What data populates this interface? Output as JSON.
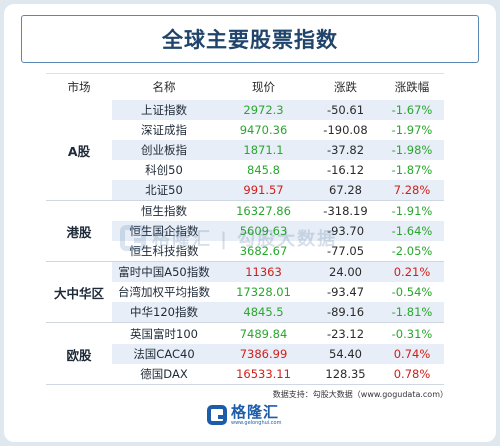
{
  "title": "全球主要股票指数",
  "headers": {
    "market": "市场",
    "name": "名称",
    "price": "现价",
    "change": "涨跌",
    "pct": "涨跌幅"
  },
  "groups": [
    {
      "label": "A股",
      "rows": [
        {
          "name": "上证指数",
          "price": "2972.3",
          "change": "-50.61",
          "pct": "-1.67%",
          "dir": "down"
        },
        {
          "name": "深证成指",
          "price": "9470.36",
          "change": "-190.08",
          "pct": "-1.97%",
          "dir": "down"
        },
        {
          "name": "创业板指",
          "price": "1871.1",
          "change": "-37.82",
          "pct": "-1.98%",
          "dir": "down"
        },
        {
          "name": "科创50",
          "price": "845.8",
          "change": "-16.12",
          "pct": "-1.87%",
          "dir": "down"
        },
        {
          "name": "北证50",
          "price": "991.57",
          "change": "67.28",
          "pct": "7.28%",
          "dir": "up"
        }
      ]
    },
    {
      "label": "港股",
      "rows": [
        {
          "name": "恒生指数",
          "price": "16327.86",
          "change": "-318.19",
          "pct": "-1.91%",
          "dir": "down"
        },
        {
          "name": "恒生国企指数",
          "price": "5609.63",
          "change": "-93.70",
          "pct": "-1.64%",
          "dir": "down"
        },
        {
          "name": "恒生科技指数",
          "price": "3682.67",
          "change": "-77.05",
          "pct": "-2.05%",
          "dir": "down"
        }
      ]
    },
    {
      "label": "大中华区",
      "rows": [
        {
          "name": "富时中国A50指数",
          "price": "11363",
          "change": "24.00",
          "pct": "0.21%",
          "dir": "up"
        },
        {
          "name": "台湾加权平均指数",
          "price": "17328.01",
          "change": "-93.47",
          "pct": "-0.54%",
          "dir": "down"
        },
        {
          "name": "中华120指数",
          "price": "4845.5",
          "change": "-89.16",
          "pct": "-1.81%",
          "dir": "down"
        }
      ]
    },
    {
      "label": "欧股",
      "rows": [
        {
          "name": "英国富时100",
          "price": "7489.84",
          "change": "-23.12",
          "pct": "-0.31%",
          "dir": "down"
        },
        {
          "name": "法国CAC40",
          "price": "7386.99",
          "change": "54.40",
          "pct": "0.74%",
          "dir": "up"
        },
        {
          "name": "德国DAX",
          "price": "16533.11",
          "change": "128.35",
          "pct": "0.78%",
          "dir": "up"
        }
      ]
    }
  ],
  "watermark": "格隆汇  |  勾股大数据",
  "source": "数据支持：勾股大数据（www.gogudata.com）",
  "footer": {
    "brand": "格隆汇",
    "url": "www.gelonghui.com"
  },
  "colors": {
    "up": "#d0201b",
    "down": "#2aa62e",
    "accent": "#1d5ca8",
    "row_alt": "#e8eef7"
  }
}
